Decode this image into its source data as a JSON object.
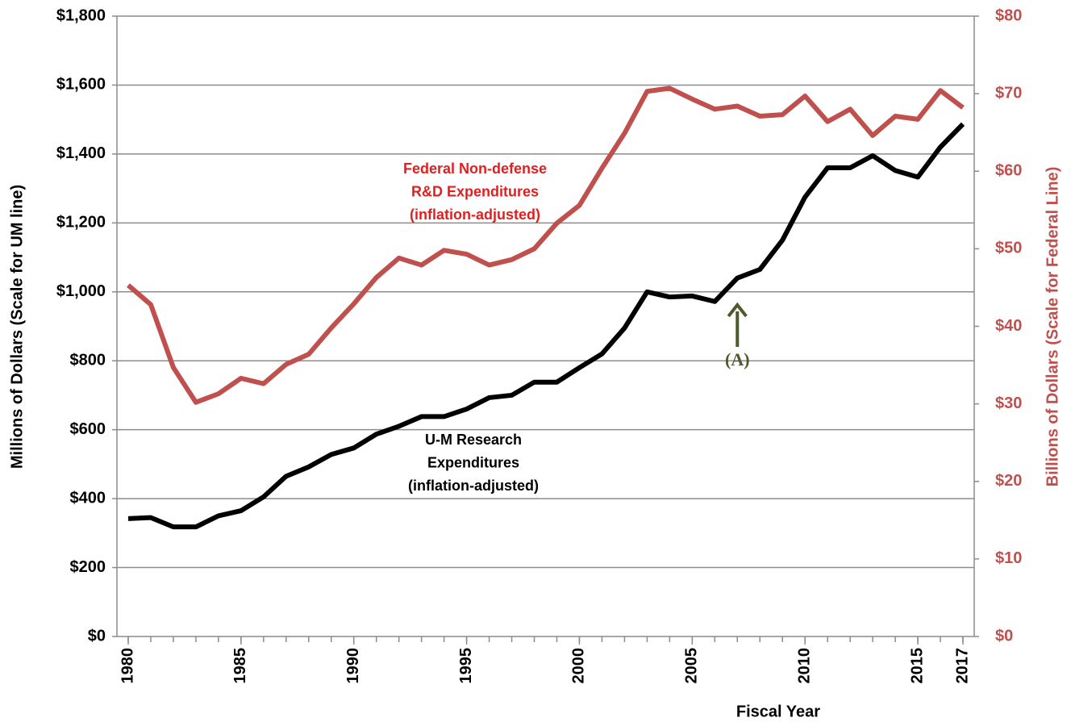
{
  "chart_data": {
    "type": "line",
    "x_label": "Fiscal Year",
    "y_label": "Millions of Dollars (Scale for UM line)",
    "y2_label": "Billions of Dollars (Scale for Federal Line)",
    "x": [
      1980,
      1981,
      1982,
      1983,
      1984,
      1985,
      1986,
      1987,
      1988,
      1989,
      1990,
      1991,
      1992,
      1993,
      1994,
      1995,
      1996,
      1997,
      1998,
      1999,
      2000,
      2001,
      2002,
      2003,
      2004,
      2005,
      2006,
      2007,
      2008,
      2009,
      2010,
      2011,
      2012,
      2013,
      2014,
      2015,
      2016,
      2017
    ],
    "xlim": [
      1979.5,
      2017.5
    ],
    "xticks": [
      1980,
      1985,
      1990,
      1995,
      2000,
      2005,
      2010,
      2015,
      2017
    ],
    "ylim": [
      0,
      1800
    ],
    "yticks": [
      {
        "value": 0,
        "label": "$0"
      },
      {
        "value": 200,
        "label": "$200"
      },
      {
        "value": 400,
        "label": "$400"
      },
      {
        "value": 600,
        "label": "$600"
      },
      {
        "value": 800,
        "label": "$800"
      },
      {
        "value": 1000,
        "label": "$1,000"
      },
      {
        "value": 1200,
        "label": "$1,200"
      },
      {
        "value": 1400,
        "label": "$1,400"
      },
      {
        "value": 1600,
        "label": "$1,600"
      },
      {
        "value": 1800,
        "label": "$1,800"
      }
    ],
    "y2lim": [
      0,
      80
    ],
    "y2ticks": [
      {
        "value": 0,
        "label": "$0"
      },
      {
        "value": 10,
        "label": "$10"
      },
      {
        "value": 20,
        "label": "$20"
      },
      {
        "value": 30,
        "label": "$30"
      },
      {
        "value": 40,
        "label": "$40"
      },
      {
        "value": 50,
        "label": "$50"
      },
      {
        "value": 60,
        "label": "$60"
      },
      {
        "value": 70,
        "label": "$70"
      },
      {
        "value": 80,
        "label": "$80"
      }
    ],
    "grid": true,
    "series": [
      {
        "label": [
          "U-M Research",
          "Expenditures",
          "(inflation-adjusted)"
        ],
        "color": "#000000",
        "values": [
          342,
          345,
          318,
          318,
          350,
          365,
          405,
          465,
          492,
          528,
          547,
          587,
          610,
          638,
          638,
          660,
          693,
          700,
          738,
          738,
          780,
          820,
          895,
          1000,
          985,
          988,
          972,
          1040,
          1065,
          1150,
          1275,
          1360,
          1360,
          1395,
          1352,
          1333,
          1420,
          1487
        ]
      },
      {
        "label": [
          "Federal Non-defense",
          "R&D Expenditures",
          "(inflation-adjusted)"
        ],
        "color": "#c0504d",
        "label_color": "#e02020",
        "axis": "y2",
        "values": [
          45.3,
          42.8,
          34.7,
          30.2,
          31.3,
          33.3,
          32.6,
          35.1,
          36.4,
          39.8,
          42.9,
          46.3,
          48.8,
          47.9,
          49.8,
          49.3,
          47.9,
          48.6,
          50.0,
          53.3,
          55.6,
          60.4,
          64.9,
          70.3,
          70.7,
          69.3,
          68.0,
          68.4,
          67.1,
          67.3,
          69.7,
          66.4,
          68.0,
          64.6,
          67.1,
          66.7,
          70.4,
          68.2
        ]
      }
    ],
    "annotation": {
      "text": "(A)",
      "x": 2007,
      "color": "#4f5a2a"
    }
  }
}
